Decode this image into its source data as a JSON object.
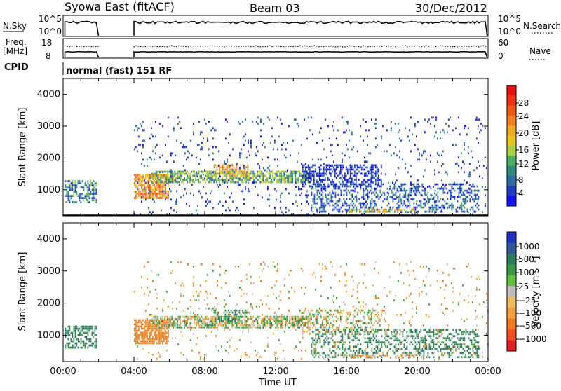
{
  "header": {
    "station": "Syowa East (fitACF)",
    "beam": "Beam 03",
    "date": "30/Dec/2012"
  },
  "noise_panel": {
    "left_label": "N.Sky",
    "right_label": "N.Search",
    "left_ticks": [
      "10^5",
      "10^0"
    ],
    "right_ticks": [
      "10^5",
      "10^0"
    ]
  },
  "freq_panel": {
    "left_label_1": "Freq.",
    "left_label_2": "[MHz]",
    "right_label": "Nave",
    "left_ticks": [
      "18",
      "8"
    ],
    "right_ticks": [
      "60",
      "0"
    ]
  },
  "cpid": {
    "label": "CPID",
    "value": "normal (fast) 151 RF"
  },
  "x_axis": {
    "title": "Time UT",
    "ticks": [
      "00:00",
      "04:00",
      "08:00",
      "12:00",
      "16:00",
      "20:00",
      "00:00"
    ]
  },
  "power_colorbar": {
    "title": "Power [dB]",
    "ticks": [
      "28",
      "24",
      "20",
      "16",
      "12",
      "8",
      "4"
    ]
  },
  "velocity_colorbar": {
    "title": "Velocity [m s⁻¹]",
    "ticks": [
      "1000",
      "500",
      "100",
      "25",
      "−25",
      "−100",
      "−500",
      "−1000"
    ]
  },
  "chart_data": [
    {
      "type": "heatmap",
      "title": "",
      "xlabel": "Time UT",
      "ylabel": "Slant Range [km]",
      "x_ticks": [
        "00:00",
        "04:00",
        "08:00",
        "12:00",
        "16:00",
        "20:00",
        "00:00"
      ],
      "y_ticks": [
        1000,
        2000,
        3000,
        4000
      ],
      "xlim_hours": [
        0,
        24
      ],
      "ylim_km": [
        180,
        4500
      ],
      "data_gaps_hours": [
        [
          2.0,
          4.0
        ]
      ],
      "colorbar": {
        "label": "Power [dB]",
        "range": [
          0,
          30
        ],
        "ticks": [
          4,
          8,
          12,
          16,
          20,
          24,
          28
        ]
      },
      "regions": [
        {
          "t": [
            0.1,
            1.9
          ],
          "r": [
            600,
            1300
          ],
          "value": 12,
          "density": 0.55
        },
        {
          "t": [
            4.0,
            6.0
          ],
          "r": [
            700,
            1500
          ],
          "value": 24,
          "density": 0.8
        },
        {
          "t": [
            5.0,
            14.0
          ],
          "r": [
            1200,
            1600
          ],
          "value": 16,
          "density": 0.7
        },
        {
          "t": [
            8.5,
            10.5
          ],
          "r": [
            1400,
            1800
          ],
          "value": 22,
          "density": 0.5
        },
        {
          "t": [
            13.5,
            18.0
          ],
          "r": [
            1100,
            1800
          ],
          "value": 6,
          "density": 0.5
        },
        {
          "t": [
            14.0,
            23.5
          ],
          "r": [
            300,
            1200
          ],
          "value": 10,
          "density": 0.35
        },
        {
          "t": [
            16.0,
            20.0
          ],
          "r": [
            250,
            400
          ],
          "value": 20,
          "density": 0.5
        },
        {
          "t": [
            4.0,
            24.0
          ],
          "r": [
            200,
            3300
          ],
          "value": 8,
          "density": 0.06
        }
      ]
    },
    {
      "type": "heatmap",
      "title": "",
      "xlabel": "Time UT",
      "ylabel": "Slant Range [km]",
      "x_ticks": [
        "00:00",
        "04:00",
        "08:00",
        "12:00",
        "16:00",
        "20:00",
        "00:00"
      ],
      "y_ticks": [
        1000,
        2000,
        3000,
        4000
      ],
      "xlim_hours": [
        0,
        24
      ],
      "ylim_km": [
        180,
        4500
      ],
      "data_gaps_hours": [
        [
          2.0,
          4.0
        ]
      ],
      "colorbar": {
        "label": "Velocity [m s⁻¹]",
        "ticks": [
          1000,
          500,
          100,
          25,
          -25,
          -100,
          -500,
          -1000
        ]
      },
      "regions": [
        {
          "t": [
            0.1,
            1.9
          ],
          "r": [
            600,
            1300
          ],
          "value": 200,
          "density": 0.55
        },
        {
          "t": [
            4.0,
            6.0
          ],
          "r": [
            700,
            1500
          ],
          "value": -300,
          "density": 0.8
        },
        {
          "t": [
            5.0,
            14.0
          ],
          "r": [
            1200,
            1600
          ],
          "value": 0,
          "density": 0.7
        },
        {
          "t": [
            8.5,
            10.5
          ],
          "r": [
            1400,
            1800
          ],
          "value": 150,
          "density": 0.4
        },
        {
          "t": [
            13.5,
            18.0
          ],
          "r": [
            1100,
            1800
          ],
          "value": 0,
          "density": 0.35
        },
        {
          "t": [
            14.0,
            23.5
          ],
          "r": [
            300,
            1200
          ],
          "value": 200,
          "density": 0.35
        },
        {
          "t": [
            16.0,
            20.0
          ],
          "r": [
            250,
            400
          ],
          "value": -120,
          "density": 0.4
        },
        {
          "t": [
            4.0,
            24.0
          ],
          "r": [
            200,
            3300
          ],
          "value": -60,
          "density": 0.05
        }
      ]
    }
  ]
}
